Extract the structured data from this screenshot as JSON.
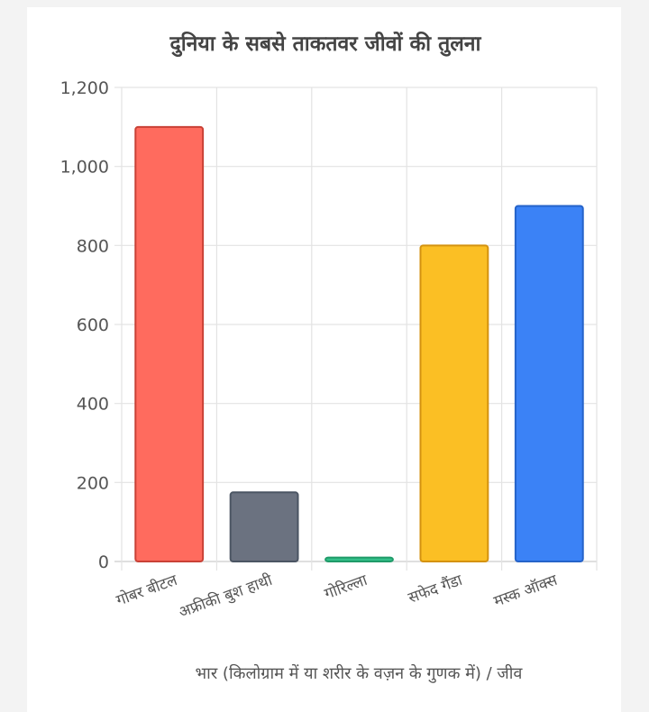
{
  "chart_data": {
    "type": "bar",
    "title": "दुनिया के सबसे ताकतवर जीवों की तुलना",
    "xlabel": "भार (किलोग्राम में या शरीर के वज़न के गुणक में) / जीव",
    "ylabel": "",
    "categories": [
      "गोबर बीटल",
      "अफ्रीकी बुश हाथी",
      "गोरिल्ला",
      "सफेद गैंडा",
      "मस्क ऑक्स"
    ],
    "values": [
      1100,
      175,
      10,
      800,
      900
    ],
    "colors": [
      "#ff6b5e",
      "#6b7280",
      "#34c08a",
      "#fbbf24",
      "#3b82f6"
    ],
    "border_colors": [
      "#c94136",
      "#4b5563",
      "#1f9a68",
      "#d4920f",
      "#2563c9"
    ],
    "ylim": [
      0,
      1200
    ],
    "yticks": [
      0,
      200,
      400,
      600,
      800,
      1000,
      1200
    ],
    "ytick_labels": [
      "0",
      "200",
      "400",
      "600",
      "800",
      "1,000",
      "1,200"
    ],
    "grid": true,
    "legend": "none"
  }
}
